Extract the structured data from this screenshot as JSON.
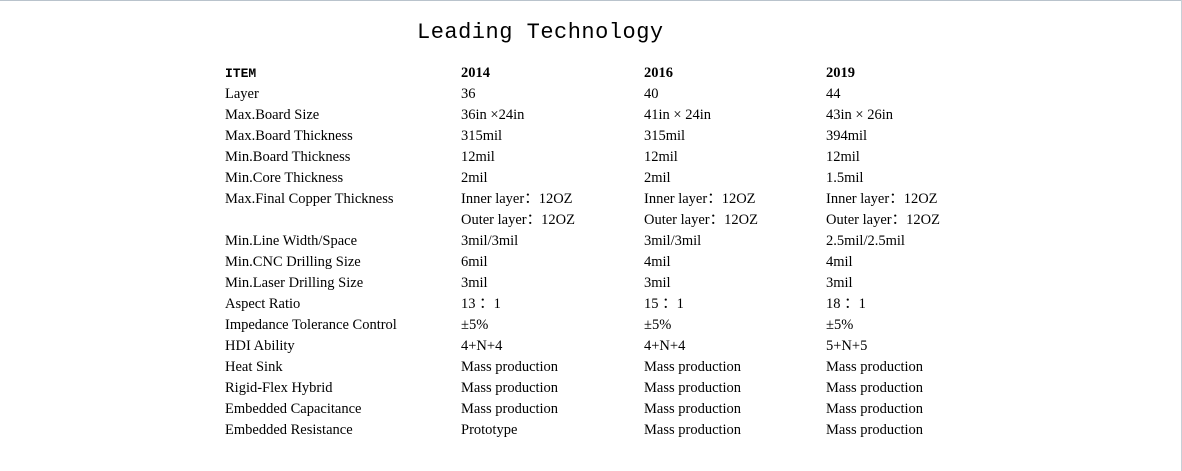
{
  "title": "Leading Technology",
  "header": [
    "ITEM",
    "2014",
    "2016",
    "2019"
  ],
  "rows": [
    {
      "item": "Layer",
      "v2014": [
        "36"
      ],
      "v2016": [
        "40"
      ],
      "v2019": [
        "44"
      ]
    },
    {
      "item": "Max.Board Size",
      "v2014": [
        "36in ×24in"
      ],
      "v2016": [
        "41in × 24in"
      ],
      "v2019": [
        "43in × 26in"
      ]
    },
    {
      "item": "Max.Board Thickness",
      "v2014": [
        "315mil"
      ],
      "v2016": [
        "315mil"
      ],
      "v2019": [
        "394mil"
      ]
    },
    {
      "item": "Min.Board Thickness",
      "v2014": [
        "12mil"
      ],
      "v2016": [
        "12mil"
      ],
      "v2019": [
        "12mil"
      ]
    },
    {
      "item": "Min.Core Thickness",
      "v2014": [
        "2mil"
      ],
      "v2016": [
        "2mil"
      ],
      "v2019": [
        "1.5mil"
      ]
    },
    {
      "item": "Max.Final Copper Thickness",
      "v2014": [
        "Inner layer：12OZ",
        "Outer layer：12OZ"
      ],
      "v2016": [
        "Inner layer：12OZ",
        "Outer layer：12OZ"
      ],
      "v2019": [
        "Inner layer：12OZ",
        "Outer layer：12OZ"
      ]
    },
    {
      "item": "Min.Line Width/Space",
      "v2014": [
        "3mil/3mil"
      ],
      "v2016": [
        "3mil/3mil"
      ],
      "v2019": [
        "2.5mil/2.5mil"
      ]
    },
    {
      "item": "Min.CNC Drilling Size",
      "v2014": [
        "6mil"
      ],
      "v2016": [
        "4mil"
      ],
      "v2019": [
        "4mil"
      ]
    },
    {
      "item": "Min.Laser Drilling Size",
      "v2014": [
        "3mil"
      ],
      "v2016": [
        "3mil"
      ],
      "v2019": [
        "3mil"
      ]
    },
    {
      "item": "Aspect Ratio",
      "v2014": [
        "13 ：1"
      ],
      "v2016": [
        "15 ：1"
      ],
      "v2019": [
        "18 ：1"
      ]
    },
    {
      "item": "Impedance Tolerance Control",
      "v2014": [
        "±5%"
      ],
      "v2016": [
        "±5%"
      ],
      "v2019": [
        "±5%"
      ]
    },
    {
      "item": "HDI Ability",
      "v2014": [
        "4+N+4"
      ],
      "v2016": [
        "4+N+4"
      ],
      "v2019": [
        "5+N+5"
      ]
    },
    {
      "item": "Heat Sink",
      "v2014": [
        "Mass production"
      ],
      "v2016": [
        "Mass production"
      ],
      "v2019": [
        "Mass production"
      ]
    },
    {
      "item": "Rigid-Flex Hybrid",
      "v2014": [
        "Mass production"
      ],
      "v2016": [
        "Mass production"
      ],
      "v2019": [
        "Mass production"
      ]
    },
    {
      "item": "Embedded Capacitance",
      "v2014": [
        "Mass production"
      ],
      "v2016": [
        "Mass production"
      ],
      "v2019": [
        "Mass production"
      ]
    },
    {
      "item": "Embedded Resistance",
      "v2014": [
        "Prototype"
      ],
      "v2016": [
        "Mass production"
      ],
      "v2019": [
        "Mass production"
      ]
    }
  ]
}
